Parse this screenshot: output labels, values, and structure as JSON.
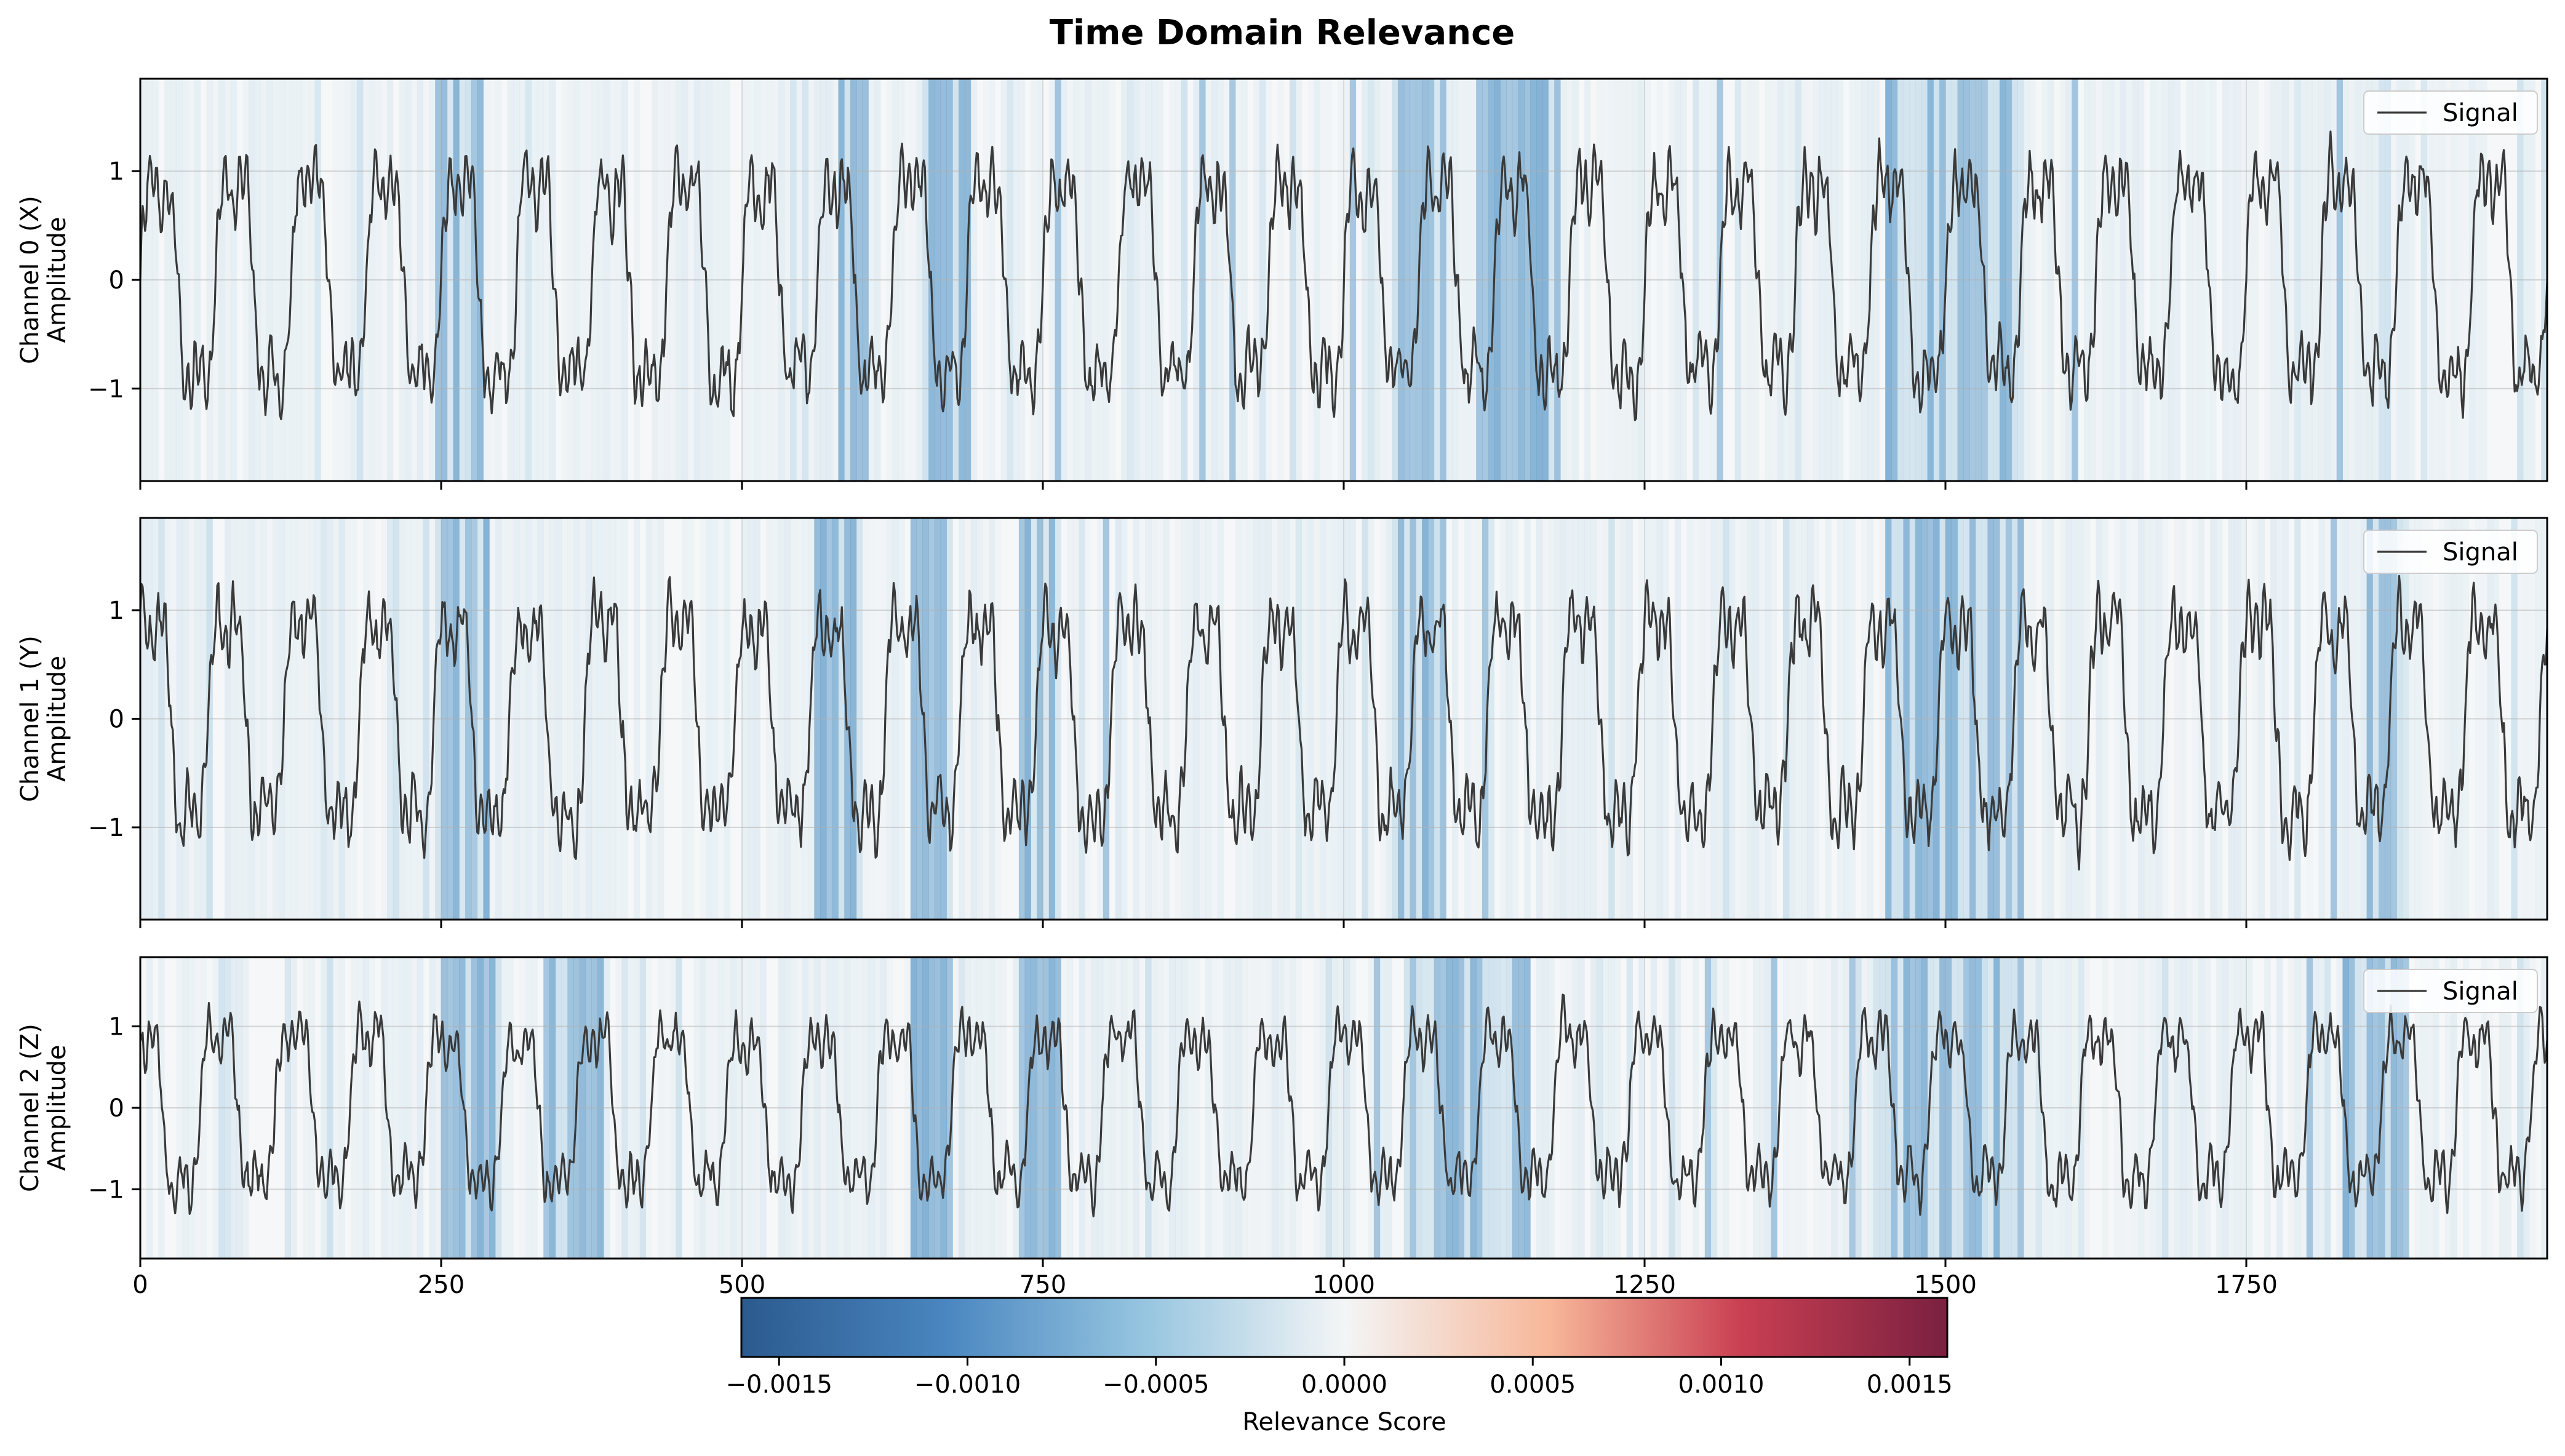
{
  "chart_data": {
    "type": "line",
    "title": "Time Domain Relevance",
    "x_range": [
      0,
      2000
    ],
    "x_ticks": [
      0,
      250,
      500,
      750,
      1000,
      1250,
      1500,
      1750
    ],
    "x_tick_labels": [
      "0",
      "250",
      "500",
      "750",
      "1000",
      "1250",
      "1500",
      "1750"
    ],
    "shared_x": true,
    "x_tick_labels_only_on_bottom": true,
    "grid": true,
    "legend_placement": "upper-right",
    "background": "relevance heatmap (vertical bands) behind each signal",
    "line_color": "#3a3a3a",
    "panels": [
      {
        "ylabel_line1": "Channel 0 (X)",
        "ylabel_line2": "Amplitude",
        "ylim": [
          -1.85,
          1.85
        ],
        "y_ticks": [
          -1,
          0,
          1
        ],
        "y_tick_labels": [
          "−1",
          "0",
          "1"
        ],
        "legend": "Signal",
        "phase": 0.0,
        "high_relevance_regions": [
          [
            245,
            280
          ],
          [
            580,
            600
          ],
          [
            650,
            685
          ],
          [
            1040,
            1080
          ],
          [
            1110,
            1175
          ],
          [
            1450,
            1560
          ]
        ]
      },
      {
        "ylabel_line1": "Channel 1 (Y)",
        "ylabel_line2": "Amplitude",
        "ylim": [
          -1.85,
          1.85
        ],
        "y_ticks": [
          -1,
          0,
          1
        ],
        "y_tick_labels": [
          "−1",
          "0",
          "1"
        ],
        "legend": "Signal",
        "phase": 0.6,
        "high_relevance_regions": [
          [
            250,
            285
          ],
          [
            560,
            590
          ],
          [
            640,
            670
          ],
          [
            730,
            760
          ],
          [
            1040,
            1080
          ],
          [
            1450,
            1560
          ],
          [
            1850,
            1880
          ]
        ]
      },
      {
        "ylabel_line1": "Channel 2 (Z)",
        "ylabel_line2": "Amplitude",
        "ylim": [
          -1.85,
          1.85
        ],
        "y_ticks": [
          -1,
          0,
          1
        ],
        "y_tick_labels": [
          "−1",
          "0",
          "1"
        ],
        "legend": "Signal",
        "phase": 1.3,
        "high_relevance_regions": [
          [
            250,
            290
          ],
          [
            340,
            380
          ],
          [
            640,
            670
          ],
          [
            730,
            760
          ],
          [
            1050,
            1150
          ],
          [
            1440,
            1560
          ],
          [
            1830,
            1880
          ]
        ]
      }
    ],
    "signal_model": {
      "period": 62.5,
      "components": [
        {
          "harmonic": 1,
          "amplitude": 1.0
        },
        {
          "harmonic": 3,
          "amplitude": 0.32
        },
        {
          "harmonic": 10,
          "amplitude": 0.18
        }
      ]
    },
    "colorbar": {
      "label": "Relevance Score",
      "range": [
        -0.0016,
        0.0016
      ],
      "ticks": [
        -0.0015,
        -0.001,
        -0.0005,
        0,
        0.0005,
        0.001,
        0.0015
      ],
      "tick_labels": [
        "−0.0015",
        "−0.0010",
        "−0.0005",
        "0.0000",
        "0.0005",
        "0.0010",
        "0.0015"
      ],
      "colormap": "RdBu_r",
      "colors": [
        "#2b5a8e",
        "#4a86c0",
        "#94c4df",
        "#f3f5f6",
        "#f7b799",
        "#c93f52",
        "#7a2040"
      ]
    }
  }
}
